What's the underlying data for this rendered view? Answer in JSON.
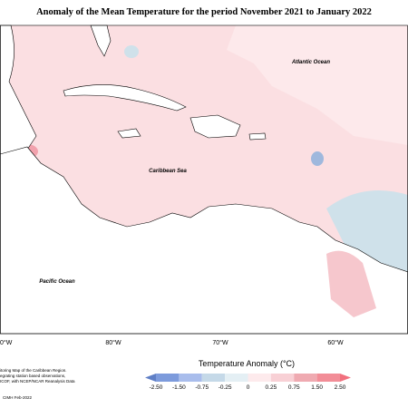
{
  "title": "Anomaly of the Mean Temperature for the period November 2021 to January 2022",
  "map": {
    "labels": [
      "Atlantic Ocean",
      "Caribbean Sea",
      "Pacific Ocean"
    ],
    "longitudes": [
      "0°W",
      "80°W",
      "70°W",
      "60°W"
    ]
  },
  "legend": {
    "title": "Temperature Anomaly (°C)",
    "ticks": [
      "-2.50",
      "-1.50",
      "-0.75",
      "-0.25",
      "0",
      "0.25",
      "0.75",
      "1.50",
      "2.50"
    ],
    "colors": [
      "#5f7fc6",
      "#7d9bdc",
      "#a9bdec",
      "#c5d9e8",
      "#e4eff4",
      "#fdeaec",
      "#f8d0d5",
      "#efaab1",
      "#f28d97",
      "#f1707e"
    ]
  },
  "footer": {
    "notes": [
      "itoring Map of the Caribbean Region.",
      "egrating station based observations,",
      "ICOF, with NCEP/NCAR Reanalysis Data"
    ],
    "credit": "CIMH Feb-2022"
  }
}
